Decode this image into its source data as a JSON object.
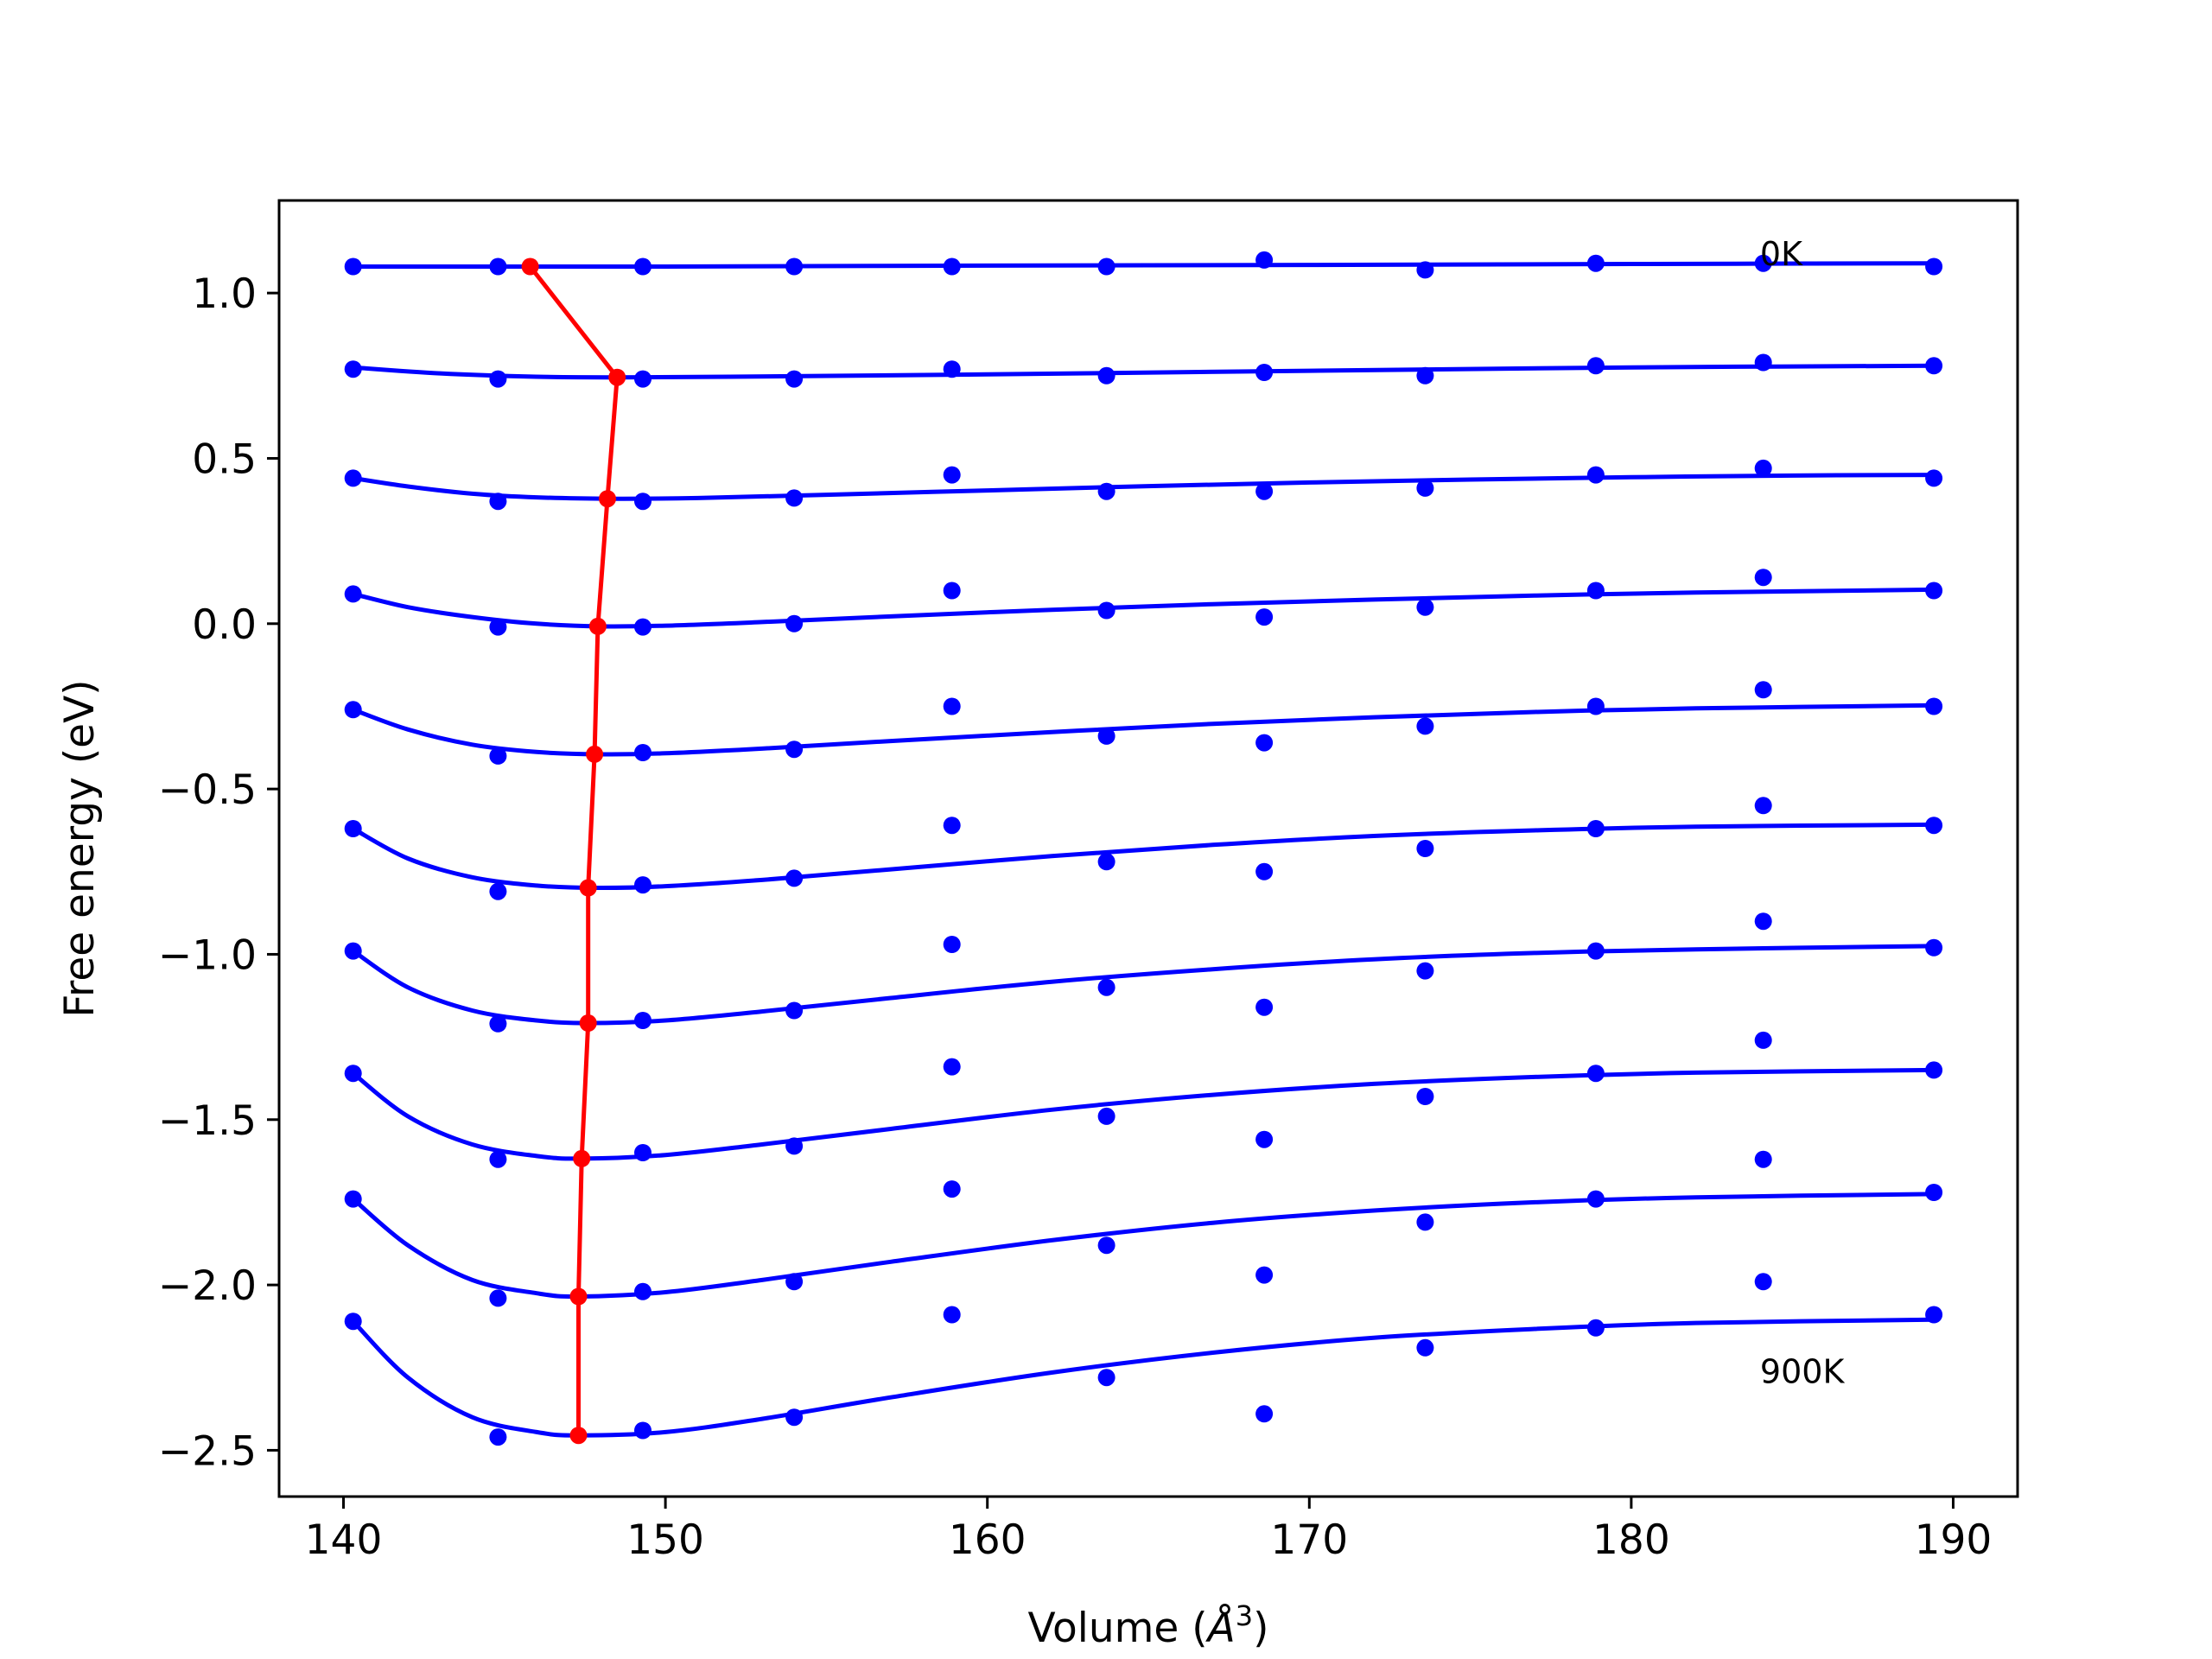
{
  "chart_data": {
    "type": "scatter",
    "xlabel": "Volume (",
    "xlabel_unit_symbol": "Å",
    "xlabel_unit_exp": "3",
    "xlabel_close": ")",
    "ylabel": "Free energy (eV)",
    "xlim": [
      138,
      192
    ],
    "ylim": [
      -2.64,
      1.28
    ],
    "x_ticks": [
      140,
      150,
      160,
      170,
      180,
      190
    ],
    "x_tick_labels": [
      "140",
      "150",
      "160",
      "170",
      "180",
      "190"
    ],
    "y_ticks": [
      1.0,
      0.5,
      0.0,
      -0.5,
      -1.0,
      -1.5,
      -2.0,
      -2.5
    ],
    "y_tick_labels": [
      "1.0",
      "0.5",
      "0.0",
      "−0.5",
      "−1.0",
      "−1.5",
      "−2.0",
      "−2.5"
    ],
    "grid": false,
    "colors": {
      "points": "#0000ff",
      "fit": "#0000ff",
      "minimum_path": "#ff0000",
      "frame": "#000000"
    },
    "annotations": [
      {
        "text": "0K",
        "x": 184.0,
        "y": 1.12
      },
      {
        "text": "900K",
        "x": 184.0,
        "y": -2.26
      }
    ],
    "volumes": [
      140.3,
      144.8,
      149.3,
      154.0,
      158.9,
      163.7,
      168.6,
      173.6,
      178.9,
      184.1,
      189.4
    ],
    "series": [
      {
        "points": [
          1.08,
          1.08,
          1.08,
          1.08,
          1.08,
          1.08,
          1.1,
          1.07,
          1.09,
          1.09,
          1.08
        ],
        "fit": [
          [
            140.3,
            1.08
          ],
          [
            145.0,
            1.08
          ],
          [
            150.0,
            1.08
          ],
          [
            160.0,
            1.083
          ],
          [
            170.0,
            1.085
          ],
          [
            180.0,
            1.088
          ],
          [
            189.4,
            1.09
          ]
        ]
      },
      {
        "points": [
          0.77,
          0.74,
          0.74,
          0.74,
          0.77,
          0.75,
          0.76,
          0.75,
          0.78,
          0.79,
          0.78
        ],
        "fit": [
          [
            140.3,
            0.775
          ],
          [
            143.0,
            0.757
          ],
          [
            146.0,
            0.747
          ],
          [
            148.5,
            0.745
          ],
          [
            152.0,
            0.747
          ],
          [
            160.0,
            0.754
          ],
          [
            170.0,
            0.765
          ],
          [
            180.0,
            0.775
          ],
          [
            189.4,
            0.78
          ]
        ]
      },
      {
        "points": [
          0.44,
          0.37,
          0.37,
          0.38,
          0.45,
          0.4,
          0.4,
          0.41,
          0.45,
          0.47,
          0.44
        ],
        "fit": [
          [
            140.3,
            0.44
          ],
          [
            142.0,
            0.415
          ],
          [
            144.0,
            0.393
          ],
          [
            146.0,
            0.382
          ],
          [
            148.3,
            0.378
          ],
          [
            151.0,
            0.38
          ],
          [
            155.0,
            0.39
          ],
          [
            160.0,
            0.403
          ],
          [
            165.0,
            0.416
          ],
          [
            170.0,
            0.427
          ],
          [
            175.0,
            0.436
          ],
          [
            180.0,
            0.443
          ],
          [
            185.0,
            0.448
          ],
          [
            189.4,
            0.45
          ]
        ]
      },
      {
        "points": [
          0.09,
          -0.01,
          -0.01,
          0.0,
          0.1,
          0.04,
          0.02,
          0.05,
          0.1,
          0.14,
          0.1
        ],
        "fit": [
          [
            140.3,
            0.09
          ],
          [
            142.0,
            0.05
          ],
          [
            144.0,
            0.02
          ],
          [
            146.0,
            0.0
          ],
          [
            148.0,
            -0.008
          ],
          [
            150.0,
            -0.006
          ],
          [
            153.0,
            0.005
          ],
          [
            157.0,
            0.022
          ],
          [
            162.0,
            0.042
          ],
          [
            167.0,
            0.059
          ],
          [
            172.0,
            0.073
          ],
          [
            177.0,
            0.085
          ],
          [
            182.0,
            0.094
          ],
          [
            189.4,
            0.103
          ]
        ]
      },
      {
        "points": [
          -0.26,
          -0.4,
          -0.39,
          -0.38,
          -0.25,
          -0.34,
          -0.36,
          -0.31,
          -0.25,
          -0.2,
          -0.25
        ],
        "fit": [
          [
            140.3,
            -0.26
          ],
          [
            142.0,
            -0.32
          ],
          [
            144.0,
            -0.366
          ],
          [
            146.0,
            -0.388
          ],
          [
            147.9,
            -0.395
          ],
          [
            150.0,
            -0.392
          ],
          [
            153.0,
            -0.378
          ],
          [
            157.0,
            -0.355
          ],
          [
            162.0,
            -0.328
          ],
          [
            167.0,
            -0.303
          ],
          [
            172.0,
            -0.283
          ],
          [
            177.0,
            -0.267
          ],
          [
            182.0,
            -0.256
          ],
          [
            189.4,
            -0.247
          ]
        ]
      },
      {
        "points": [
          -0.62,
          -0.81,
          -0.79,
          -0.77,
          -0.61,
          -0.72,
          -0.75,
          -0.68,
          -0.62,
          -0.55,
          -0.61
        ],
        "fit": [
          [
            140.3,
            -0.62
          ],
          [
            142.0,
            -0.71
          ],
          [
            144.0,
            -0.767
          ],
          [
            146.0,
            -0.792
          ],
          [
            147.8,
            -0.799
          ],
          [
            150.0,
            -0.794
          ],
          [
            153.0,
            -0.775
          ],
          [
            157.0,
            -0.743
          ],
          [
            162.0,
            -0.703
          ],
          [
            167.0,
            -0.669
          ],
          [
            172.0,
            -0.642
          ],
          [
            177.0,
            -0.625
          ],
          [
            182.0,
            -0.614
          ],
          [
            189.4,
            -0.608
          ]
        ]
      },
      {
        "points": [
          -0.99,
          -1.21,
          -1.2,
          -1.17,
          -0.97,
          -1.1,
          -1.16,
          -1.05,
          -0.99,
          -0.9,
          -0.98
        ],
        "fit": [
          [
            140.3,
            -0.99
          ],
          [
            142.0,
            -1.1
          ],
          [
            144.0,
            -1.17
          ],
          [
            146.0,
            -1.2
          ],
          [
            147.6,
            -1.208
          ],
          [
            150.0,
            -1.2
          ],
          [
            153.0,
            -1.173
          ],
          [
            157.0,
            -1.132
          ],
          [
            162.0,
            -1.083
          ],
          [
            167.0,
            -1.045
          ],
          [
            172.0,
            -1.015
          ],
          [
            177.0,
            -0.996
          ],
          [
            182.0,
            -0.985
          ],
          [
            189.4,
            -0.975
          ]
        ]
      },
      {
        "points": [
          -1.36,
          -1.62,
          -1.6,
          -1.58,
          -1.34,
          -1.49,
          -1.56,
          -1.43,
          -1.36,
          -1.26,
          -1.35
        ],
        "fit": [
          [
            140.3,
            -1.36
          ],
          [
            142.0,
            -1.49
          ],
          [
            144.0,
            -1.575
          ],
          [
            146.0,
            -1.61
          ],
          [
            147.4,
            -1.618
          ],
          [
            150.0,
            -1.607
          ],
          [
            153.0,
            -1.575
          ],
          [
            157.0,
            -1.528
          ],
          [
            162.0,
            -1.47
          ],
          [
            167.0,
            -1.425
          ],
          [
            172.0,
            -1.392
          ],
          [
            177.0,
            -1.371
          ],
          [
            182.0,
            -1.358
          ],
          [
            189.4,
            -1.35
          ]
        ]
      },
      {
        "points": [
          -1.74,
          -2.04,
          -2.02,
          -1.99,
          -1.71,
          -1.88,
          -1.97,
          -1.81,
          -1.74,
          -1.62,
          -1.72
        ],
        "fit": [
          [
            140.3,
            -1.74
          ],
          [
            142.0,
            -1.88
          ],
          [
            144.0,
            -1.985
          ],
          [
            146.0,
            -2.025
          ],
          [
            147.3,
            -2.035
          ],
          [
            150.0,
            -2.022
          ],
          [
            153.0,
            -1.985
          ],
          [
            157.0,
            -1.93
          ],
          [
            162.0,
            -1.865
          ],
          [
            167.0,
            -1.812
          ],
          [
            172.0,
            -1.775
          ],
          [
            177.0,
            -1.75
          ],
          [
            182.0,
            -1.735
          ],
          [
            189.4,
            -1.725
          ]
        ]
      },
      {
        "points": [
          -2.11,
          -2.46,
          -2.44,
          -2.4,
          -2.09,
          -2.28,
          -2.39,
          -2.19,
          -2.13,
          -1.99,
          -2.09
        ],
        "fit": [
          [
            140.3,
            -2.11
          ],
          [
            142.0,
            -2.28
          ],
          [
            144.0,
            -2.4
          ],
          [
            146.0,
            -2.445
          ],
          [
            147.3,
            -2.455
          ],
          [
            150.0,
            -2.445
          ],
          [
            153.0,
            -2.405
          ],
          [
            157.0,
            -2.34
          ],
          [
            162.0,
            -2.265
          ],
          [
            167.0,
            -2.205
          ],
          [
            172.0,
            -2.16
          ],
          [
            177.0,
            -2.133
          ],
          [
            182.0,
            -2.115
          ],
          [
            189.4,
            -2.105
          ]
        ]
      }
    ],
    "minimum_path": {
      "x": [
        145.8,
        148.5,
        148.2,
        147.9,
        147.8,
        147.6,
        147.6,
        147.4,
        147.3,
        147.3
      ],
      "y": [
        1.08,
        0.745,
        0.378,
        -0.008,
        -0.395,
        -0.799,
        -1.208,
        -1.618,
        -2.035,
        -2.455
      ]
    }
  }
}
